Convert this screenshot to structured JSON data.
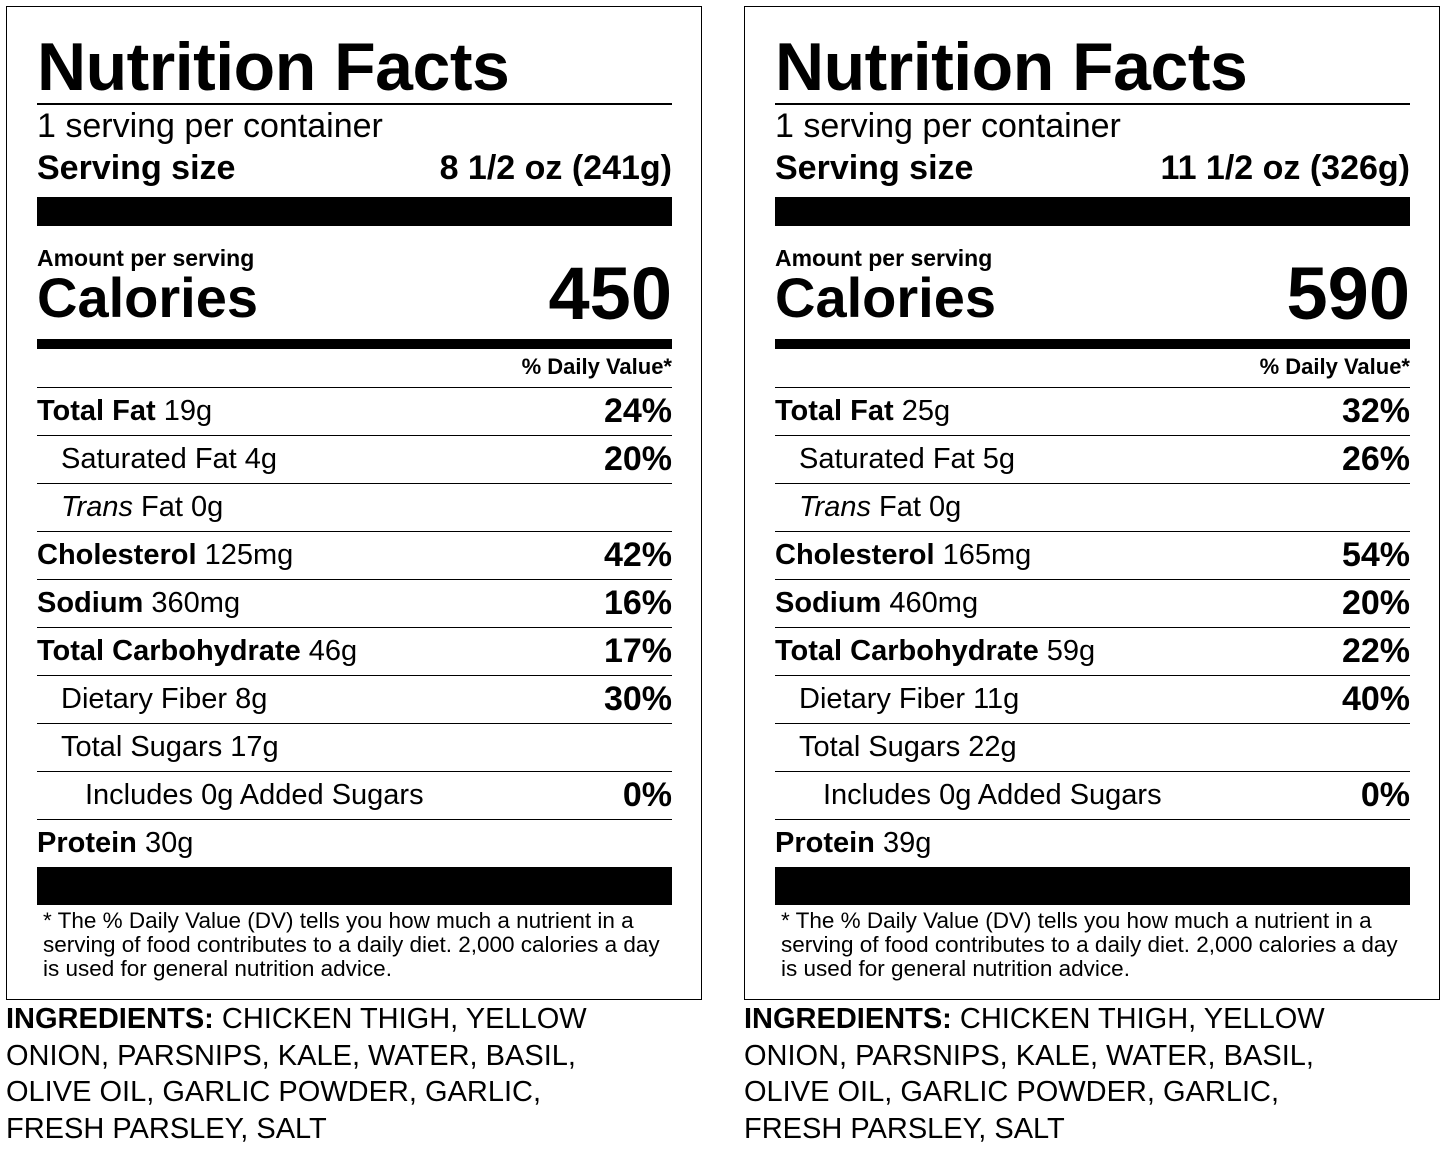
{
  "labels": [
    {
      "title": "Nutrition Facts",
      "servings_per_container": "1 serving per container",
      "serving_size_label": "Serving size",
      "serving_size_value": "8 1/2 oz (241g)",
      "amount_per_serving": "Amount per serving",
      "calories_label": "Calories",
      "calories_value": "450",
      "dv_header": "% Daily Value*",
      "nutrients": [
        {
          "name": "Total Fat",
          "amount": "19g",
          "dv": "24%"
        },
        {
          "name": "Saturated Fat",
          "amount": "4g",
          "dv": "20%"
        },
        {
          "name": "Trans",
          "name_rest": " Fat",
          "amount": "0g",
          "dv": ""
        },
        {
          "name": "Cholesterol",
          "amount": "125mg",
          "dv": "42%"
        },
        {
          "name": "Sodium",
          "amount": "360mg",
          "dv": "16%"
        },
        {
          "name": "Total Carbohydrate",
          "amount": "46g",
          "dv": "17%"
        },
        {
          "name": "Dietary Fiber",
          "amount": "8g",
          "dv": "30%"
        },
        {
          "name": "Total Sugars",
          "amount": "17g",
          "dv": ""
        },
        {
          "name": "Includes 0g Added Sugars",
          "amount": "",
          "dv": "0%"
        },
        {
          "name": "Protein",
          "amount": "30g",
          "dv": ""
        }
      ],
      "footnote": "* The % Daily Value (DV) tells you how much a nutrient in a serving of food contributes to a daily diet. 2,000 calories a day is used for general nutrition advice.",
      "ingredients_label": "INGREDIENTS:",
      "ingredients_text": "CHICKEN THIGH, YELLOW ONION, PARSNIPS, KALE, WATER, BASIL, OLIVE OIL, GARLIC POWDER, GARLIC, FRESH PARSLEY, SALT"
    },
    {
      "title": "Nutrition Facts",
      "servings_per_container": "1 serving per container",
      "serving_size_label": "Serving size",
      "serving_size_value": "11 1/2 oz (326g)",
      "amount_per_serving": "Amount per serving",
      "calories_label": "Calories",
      "calories_value": "590",
      "dv_header": "% Daily Value*",
      "nutrients": [
        {
          "name": "Total Fat",
          "amount": "25g",
          "dv": "32%"
        },
        {
          "name": "Saturated Fat",
          "amount": "5g",
          "dv": "26%"
        },
        {
          "name": "Trans",
          "name_rest": " Fat",
          "amount": "0g",
          "dv": ""
        },
        {
          "name": "Cholesterol",
          "amount": "165mg",
          "dv": "54%"
        },
        {
          "name": "Sodium",
          "amount": "460mg",
          "dv": "20%"
        },
        {
          "name": "Total Carbohydrate",
          "amount": "59g",
          "dv": "22%"
        },
        {
          "name": "Dietary Fiber",
          "amount": "11g",
          "dv": "40%"
        },
        {
          "name": "Total Sugars",
          "amount": "22g",
          "dv": ""
        },
        {
          "name": "Includes 0g Added Sugars",
          "amount": "",
          "dv": "0%"
        },
        {
          "name": "Protein",
          "amount": "39g",
          "dv": ""
        }
      ],
      "footnote": "* The % Daily Value (DV) tells you how much a nutrient in a serving of food contributes to a daily diet. 2,000 calories a day is used for general nutrition advice.",
      "ingredients_label": "INGREDIENTS:",
      "ingredients_text": "CHICKEN THIGH, YELLOW ONION, PARSNIPS, KALE, WATER, BASIL, OLIVE OIL, GARLIC POWDER, GARLIC, FRESH PARSLEY, SALT"
    }
  ]
}
